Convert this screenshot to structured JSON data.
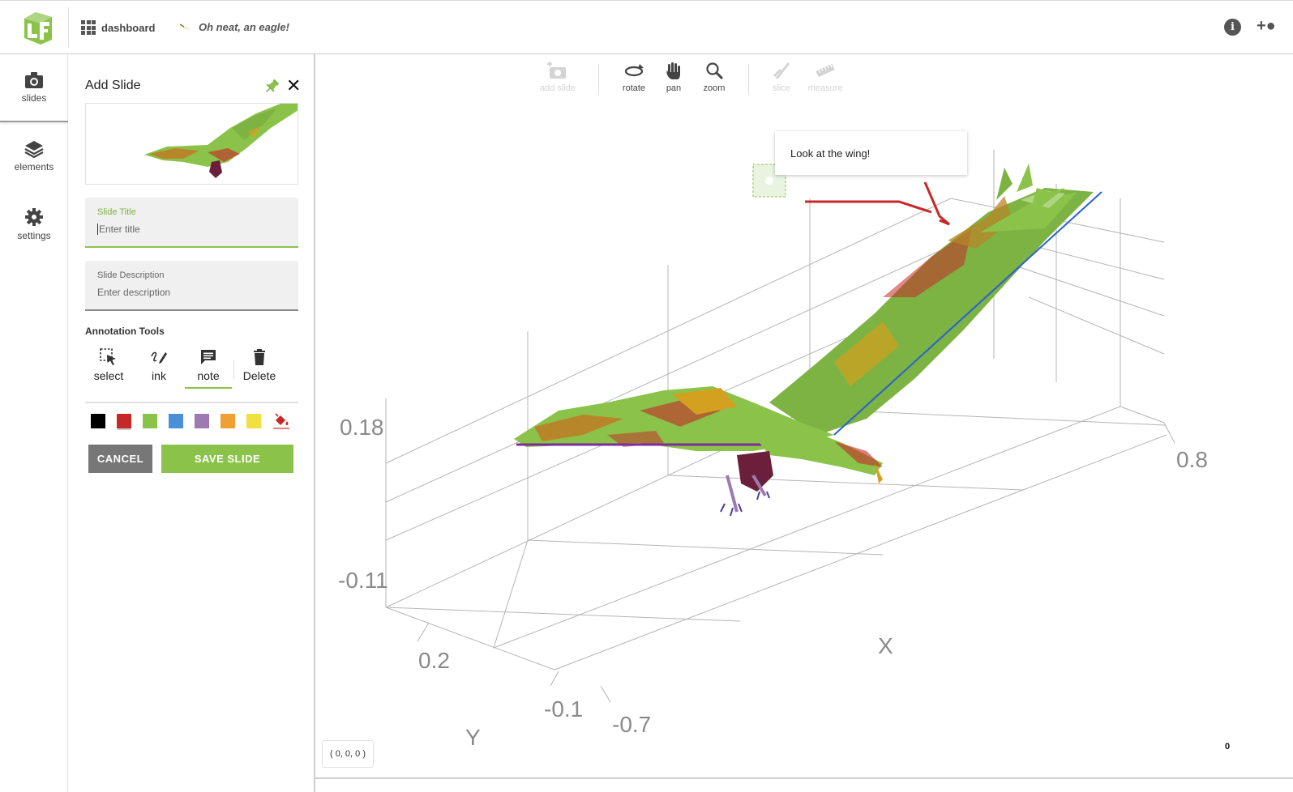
{
  "header": {
    "dashboard_label": "dashboard",
    "project_title": "Oh neat, an eagle!"
  },
  "rail": {
    "items": [
      {
        "label": "slides",
        "icon": "camera-icon"
      },
      {
        "label": "elements",
        "icon": "layers-icon"
      },
      {
        "label": "settings",
        "icon": "gear-icon"
      }
    ]
  },
  "panel": {
    "title": "Add Slide",
    "slide_title_label": "Slide Title",
    "slide_title_placeholder": "Enter title",
    "slide_description_label": "Slide Description",
    "slide_description_placeholder": "Enter description",
    "annotation_tools_label": "Annotation Tools",
    "tools": [
      {
        "label": "select",
        "icon": "select-icon"
      },
      {
        "label": "ink",
        "icon": "ink-icon"
      },
      {
        "label": "note",
        "icon": "note-icon"
      },
      {
        "label": "Delete",
        "icon": "trash-icon"
      }
    ],
    "active_tool": "note",
    "colors": [
      "#000000",
      "#c62828",
      "#8bc34a",
      "#4a90d9",
      "#9c7bb0",
      "#f0a030",
      "#f0e040"
    ],
    "selected_color": "#c62828",
    "cancel_label": "CANCEL",
    "save_label": "SAVE SLIDE"
  },
  "toolbar": {
    "items": [
      {
        "label": "add slide",
        "icon": "add-camera-icon",
        "enabled": false
      },
      {
        "label": "rotate",
        "icon": "rotate-icon",
        "enabled": true
      },
      {
        "label": "pan",
        "icon": "hand-icon",
        "enabled": true
      },
      {
        "label": "zoom",
        "icon": "magnifier-icon",
        "enabled": true
      },
      {
        "label": "slice",
        "icon": "slice-icon",
        "enabled": false
      },
      {
        "label": "measure",
        "icon": "ruler-icon",
        "enabled": false
      }
    ]
  },
  "scene": {
    "note_text": "Look at the wing!",
    "axes": {
      "z_ticks": [
        "0.18",
        "-0.11"
      ],
      "y_ticks": [
        "0.2",
        "-0.1"
      ],
      "x_ticks": [
        "-0.7",
        "0.8"
      ],
      "x_label": "X",
      "y_label": "Y"
    },
    "coordinates": "( 0, 0, 0 )",
    "counter": "0"
  }
}
